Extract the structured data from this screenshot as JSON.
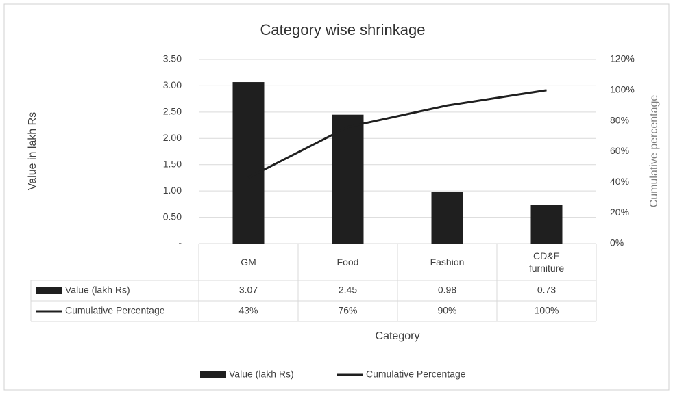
{
  "chart_data": {
    "type": "bar",
    "title": "Category wise shrinkage",
    "x_label": "Category",
    "y_label": "Value in lakh Rs",
    "y2_label": "Cumulative percentage",
    "categories": [
      "GM",
      "Food",
      "Fashion",
      "CD&E furniture"
    ],
    "series": [
      {
        "name": "Value (lakh Rs)",
        "type": "bar",
        "color": "#1f1f1f",
        "values": [
          3.07,
          2.45,
          0.98,
          0.73
        ]
      },
      {
        "name": "Cumulative Percentage",
        "type": "line",
        "axis": "y2",
        "color": "#1f1f1f",
        "values": [
          43,
          76,
          90,
          100
        ],
        "value_labels": [
          "43%",
          "76%",
          "90%",
          "100%"
        ]
      }
    ],
    "ylim": [
      0,
      3.5
    ],
    "yticks": [
      {
        "value": 0,
        "label": "-"
      },
      {
        "value": 0.5,
        "label": "0.50"
      },
      {
        "value": 1,
        "label": "1.00"
      },
      {
        "value": 1.5,
        "label": "1.50"
      },
      {
        "value": 2,
        "label": "2.00"
      },
      {
        "value": 2.5,
        "label": "2.50"
      },
      {
        "value": 3,
        "label": "3.00"
      },
      {
        "value": 3.5,
        "label": "3.50"
      }
    ],
    "y2lim": [
      0,
      120
    ],
    "y2ticks": [
      {
        "value": 0,
        "label": "0%"
      },
      {
        "value": 20,
        "label": "20%"
      },
      {
        "value": 40,
        "label": "40%"
      },
      {
        "value": 60,
        "label": "60%"
      },
      {
        "value": 80,
        "label": "80%"
      },
      {
        "value": 100,
        "label": "100%"
      },
      {
        "value": 120,
        "label": "120%"
      }
    ],
    "grid": true,
    "legend": "bottom"
  }
}
